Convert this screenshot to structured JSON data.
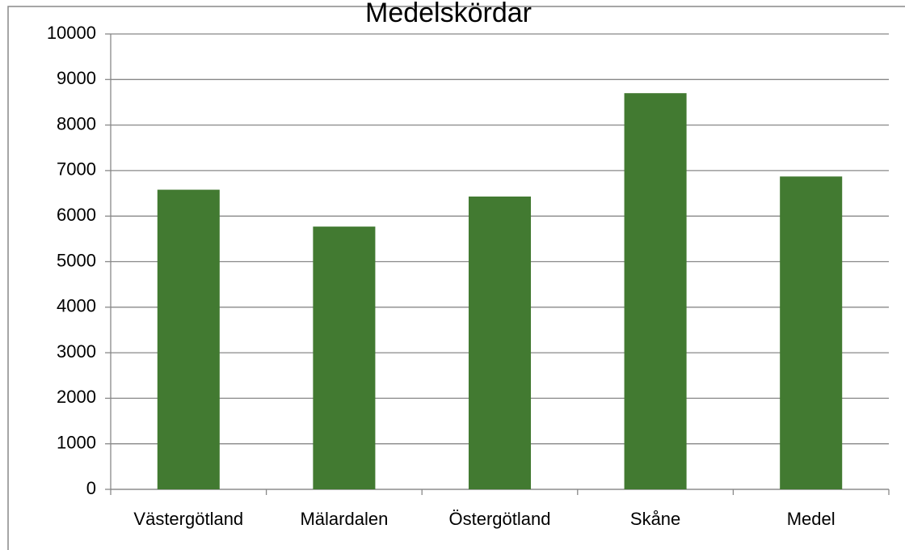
{
  "chart_data": {
    "type": "bar",
    "title": "Medelskördar",
    "categories": [
      "Västergötland",
      "Mälardalen",
      "Östergötland",
      "Skåne",
      "Medel"
    ],
    "values": [
      6580,
      5770,
      6430,
      8700,
      6870
    ],
    "color": "#427a31",
    "ylim": [
      0,
      10000
    ],
    "yticks": [
      0,
      1000,
      2000,
      3000,
      4000,
      5000,
      6000,
      7000,
      8000,
      9000,
      10000
    ],
    "grid": true
  }
}
